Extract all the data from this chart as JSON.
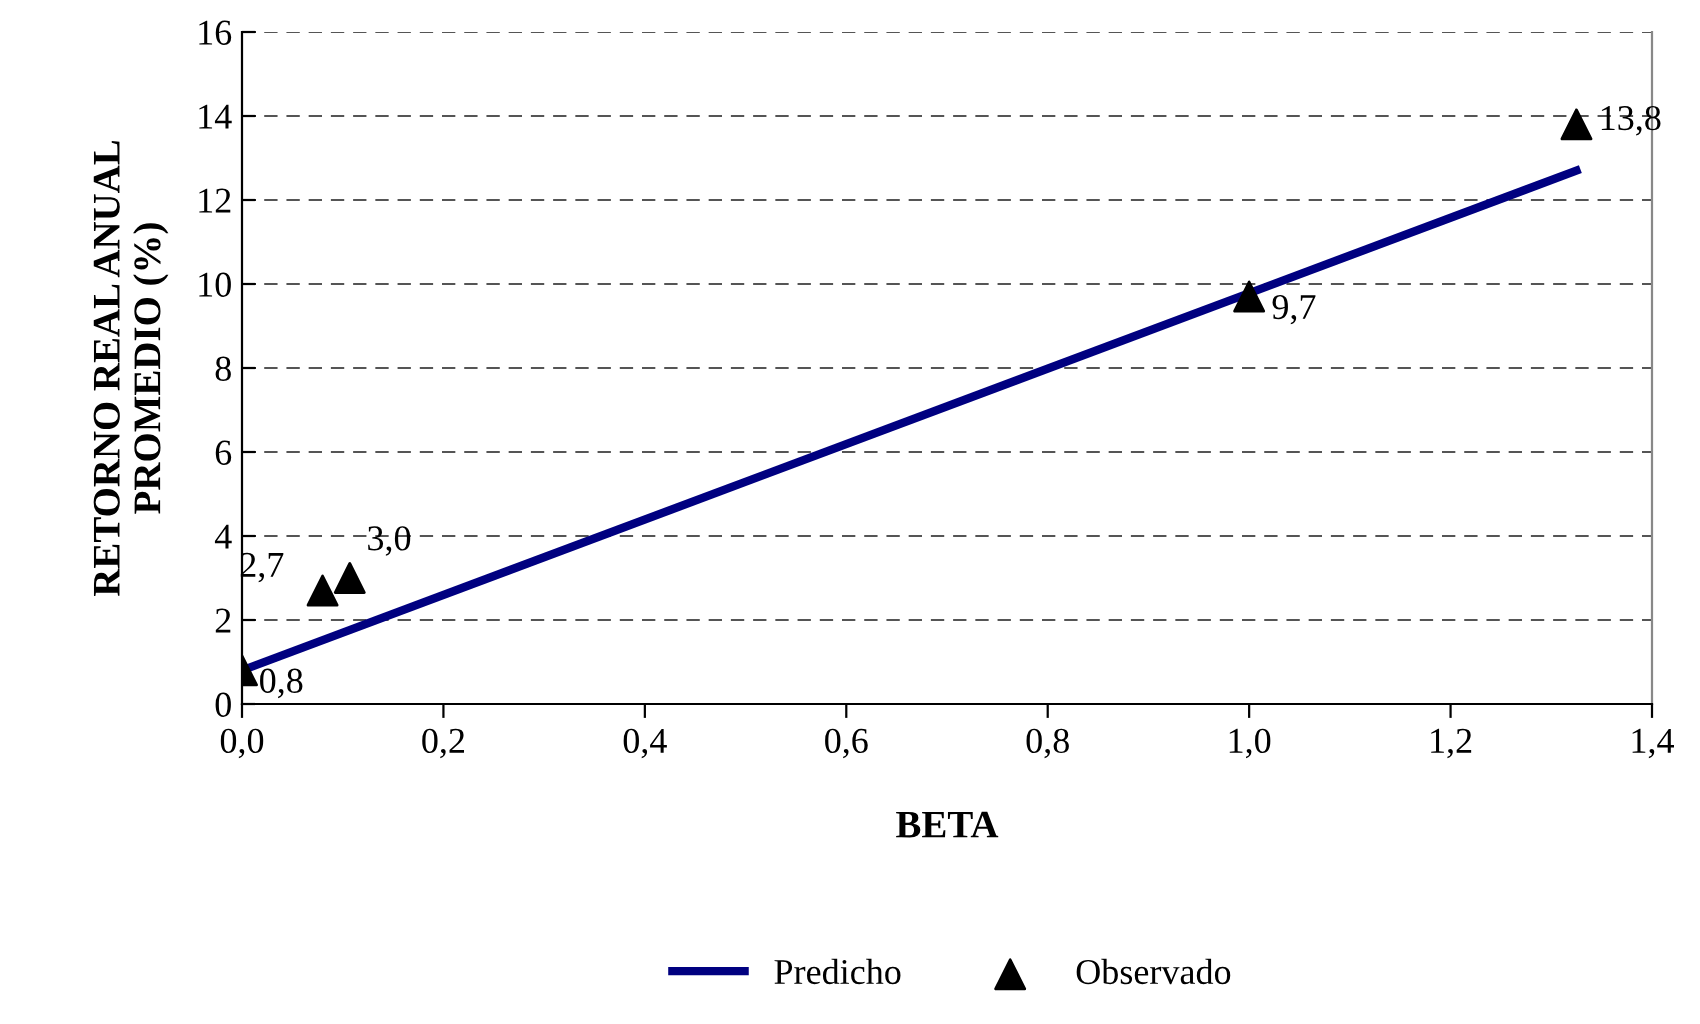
{
  "chart_data": {
    "type": "scatter",
    "xlabel": "BETA",
    "ylabel": "RETORNO REAL ANUAL\nPROMEDIO (%)",
    "series": [
      {
        "name": "Predicho",
        "type": "line",
        "color": "#000080",
        "x": [
          0,
          1.325
        ],
        "values": [
          0.8,
          12.7
        ],
        "marker": "none",
        "line_style": "solid"
      },
      {
        "name": "Observado",
        "color": "#000000",
        "marker": "triangle",
        "x": [
          0,
          0.08,
          0.107,
          1.0,
          1.325
        ],
        "values": [
          0.8,
          2.7,
          3.0,
          9.7,
          13.8
        ],
        "value_labels": [
          "0,8",
          "2,7",
          "3,0",
          "9,7",
          "13,8"
        ]
      }
    ],
    "xlim": [
      0,
      1.4
    ],
    "ylim": [
      0,
      16
    ],
    "xticks": [
      {
        "value": 0,
        "label": "0,0"
      },
      {
        "value": 0.2,
        "label": "0,2"
      },
      {
        "value": 0.4,
        "label": "0,4"
      },
      {
        "value": 0.6,
        "label": "0,6"
      },
      {
        "value": 0.8,
        "label": "0,8"
      },
      {
        "value": 1.0,
        "label": "1,0"
      },
      {
        "value": 1.2,
        "label": "1,2"
      },
      {
        "value": 1.4,
        "label": "1,4"
      }
    ],
    "yticks": [
      0,
      2,
      4,
      6,
      8,
      10,
      12,
      14,
      16
    ],
    "grid": "y",
    "legend": "bottom"
  }
}
